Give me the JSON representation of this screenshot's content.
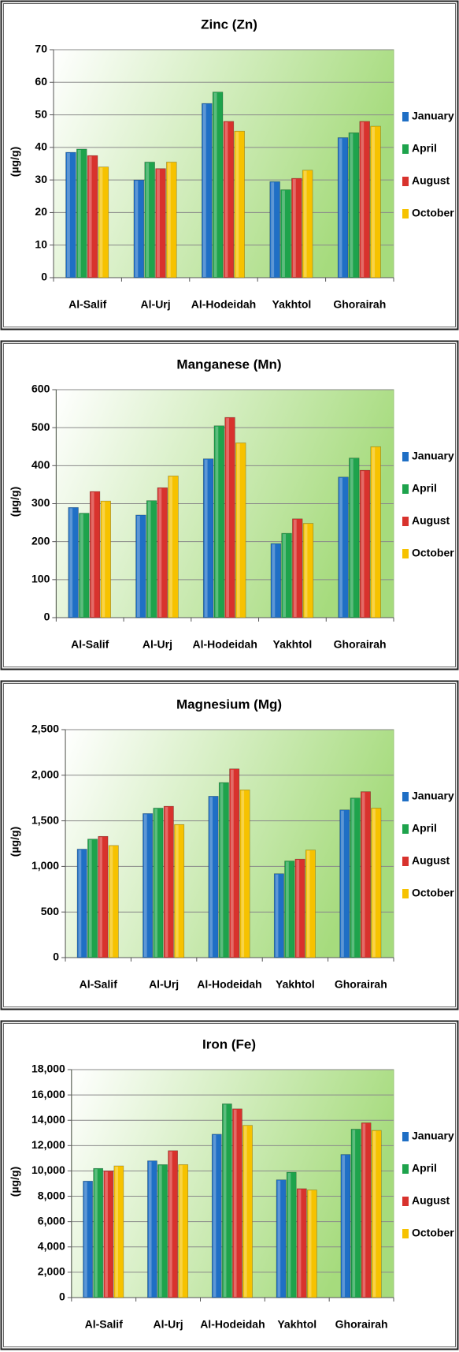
{
  "chart_data": [
    {
      "type": "bar",
      "title": "Zinc (Zn)",
      "y_label": "(µg/g)",
      "categories": [
        "Al-Salif",
        "Al-Urj",
        "Al-Hodeidah",
        "Yakhtol",
        "Ghorairah"
      ],
      "series": [
        {
          "name": "January",
          "color": "#1f6fc5",
          "values": [
            38.5,
            30,
            53.5,
            29.5,
            43
          ]
        },
        {
          "name": "April",
          "color": "#1ea34c",
          "values": [
            39.5,
            35.5,
            57,
            27,
            44.5
          ]
        },
        {
          "name": "August",
          "color": "#d8322d",
          "values": [
            37.5,
            33.5,
            48,
            30.5,
            48
          ]
        },
        {
          "name": "October",
          "color": "#f6c200",
          "values": [
            34,
            35.5,
            45,
            33,
            46.5
          ]
        }
      ],
      "ylim": [
        0,
        70
      ],
      "yticks": [
        0,
        10,
        20,
        30,
        40,
        50,
        60,
        70
      ],
      "grid": true,
      "legend": "right"
    },
    {
      "type": "bar",
      "title": "Manganese (Mn)",
      "y_label": "(µg/g)",
      "categories": [
        "Al-Salif",
        "Al-Urj",
        "Al-Hodeidah",
        "Yakhtol",
        "Ghorairah"
      ],
      "series": [
        {
          "name": "January",
          "color": "#1f6fc5",
          "values": [
            290,
            270,
            418,
            195,
            370
          ]
        },
        {
          "name": "April",
          "color": "#1ea34c",
          "values": [
            275,
            308,
            505,
            222,
            420
          ]
        },
        {
          "name": "August",
          "color": "#d8322d",
          "values": [
            332,
            342,
            527,
            260,
            388
          ]
        },
        {
          "name": "October",
          "color": "#f6c200",
          "values": [
            307,
            373,
            460,
            248,
            450
          ]
        }
      ],
      "ylim": [
        0,
        600
      ],
      "yticks": [
        0,
        100,
        200,
        300,
        400,
        500,
        600
      ],
      "grid": true,
      "legend": "right"
    },
    {
      "type": "bar",
      "title": "Magnesium (Mg)",
      "y_label": "(µg/g)",
      "categories": [
        "Al-Salif",
        "Al-Urj",
        "Al-Hodeidah",
        "Yakhtol",
        "Ghorairah"
      ],
      "series": [
        {
          "name": "January",
          "color": "#1f6fc5",
          "values": [
            1190,
            1580,
            1770,
            920,
            1620
          ]
        },
        {
          "name": "April",
          "color": "#1ea34c",
          "values": [
            1300,
            1640,
            1920,
            1060,
            1750
          ]
        },
        {
          "name": "August",
          "color": "#d8322d",
          "values": [
            1330,
            1660,
            2070,
            1080,
            1820
          ]
        },
        {
          "name": "October",
          "color": "#f6c200",
          "values": [
            1230,
            1460,
            1840,
            1180,
            1640
          ]
        }
      ],
      "ylim": [
        0,
        2500
      ],
      "yticks": [
        0,
        500,
        {
          "value": 1000,
          "label": "1,000"
        },
        {
          "value": 1500,
          "label": "1,500"
        },
        {
          "value": 2000,
          "label": "2,000"
        },
        {
          "value": 2500,
          "label": "2,500"
        }
      ],
      "grid": true,
      "legend": "right"
    },
    {
      "type": "bar",
      "title": "Iron (Fe)",
      "y_label": "(µg/g)",
      "categories": [
        "Al-Salif",
        "Al-Urj",
        "Al-Hodeidah",
        "Yakhtol",
        "Ghorairah"
      ],
      "series": [
        {
          "name": "January",
          "color": "#1f6fc5",
          "values": [
            9200,
            10800,
            12900,
            9300,
            11300
          ]
        },
        {
          "name": "April",
          "color": "#1ea34c",
          "values": [
            10200,
            10500,
            15300,
            9900,
            13300
          ]
        },
        {
          "name": "August",
          "color": "#d8322d",
          "values": [
            10000,
            11600,
            14900,
            8600,
            13800
          ]
        },
        {
          "name": "October",
          "color": "#f6c200",
          "values": [
            10400,
            10500,
            13600,
            8500,
            13200
          ]
        }
      ],
      "ylim": [
        0,
        18000
      ],
      "yticks": [
        0,
        {
          "value": 2000,
          "label": "2,000"
        },
        {
          "value": 4000,
          "label": "4,000"
        },
        {
          "value": 6000,
          "label": "6,000"
        },
        {
          "value": 8000,
          "label": "8,000"
        },
        {
          "value": 10000,
          "label": "10,000"
        },
        {
          "value": 12000,
          "label": "12,000"
        },
        {
          "value": 14000,
          "label": "14,000"
        },
        {
          "value": 16000,
          "label": "16,000"
        },
        {
          "value": 18000,
          "label": "18,000"
        }
      ],
      "grid": true,
      "legend": "right"
    }
  ]
}
